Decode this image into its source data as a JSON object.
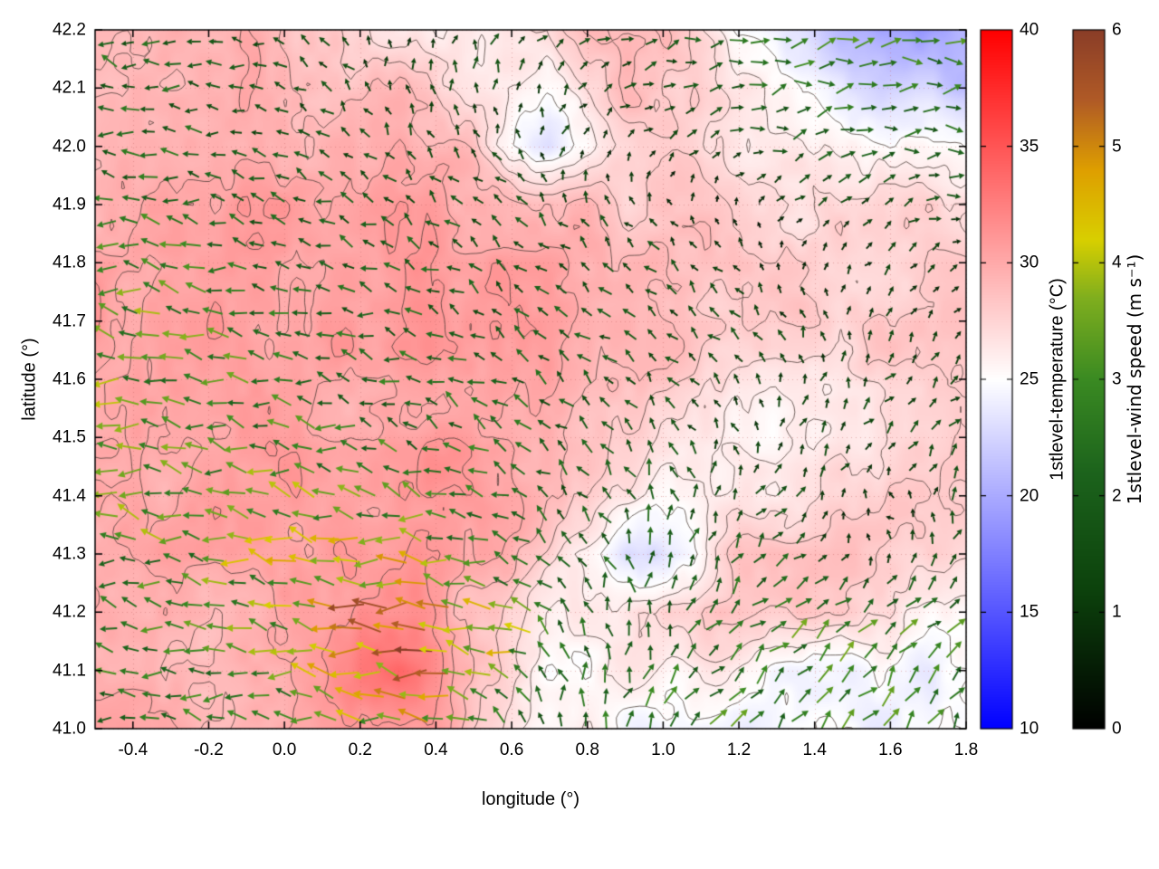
{
  "chart_data": {
    "type": "heatmap",
    "subtype": "temperature-field-with-wind-vector-quiver-and-contours",
    "title": "",
    "xlabel": "longitude (°)",
    "ylabel": "latitude (°)",
    "xlim": [
      -0.5,
      1.8
    ],
    "ylim": [
      41.0,
      42.2
    ],
    "grid": true,
    "x_ticks": {
      "values": [
        -0.4,
        -0.2,
        0.0,
        0.2,
        0.4,
        0.6,
        0.8,
        1.0,
        1.2,
        1.4,
        1.6,
        1.8
      ],
      "labels": [
        "-0.4",
        "-0.2",
        "0.0",
        "0.2",
        "0.4",
        "0.6",
        "0.8",
        "1.0",
        "1.2",
        "1.4",
        "1.6",
        "1.8"
      ]
    },
    "y_ticks": {
      "values": [
        41.0,
        41.1,
        41.2,
        41.3,
        41.4,
        41.5,
        41.6,
        41.7,
        41.8,
        41.9,
        42.0,
        42.1,
        42.2
      ],
      "labels": [
        "41.0",
        "41.1",
        "41.2",
        "41.3",
        "41.4",
        "41.5",
        "41.6",
        "41.7",
        "41.8",
        "41.9",
        "42.0",
        "42.1",
        "42.2"
      ]
    },
    "colorbars": [
      {
        "label": "1stlevel-temperature (°C)",
        "range": [
          10,
          40
        ],
        "tick_values": [
          10,
          15,
          20,
          25,
          30,
          35,
          40
        ],
        "tick_labels": [
          "10",
          "15",
          "20",
          "25",
          "30",
          "35",
          "40"
        ],
        "stops": [
          [
            10,
            "#0000ff"
          ],
          [
            25,
            "#ffffff"
          ],
          [
            40,
            "#ff0000"
          ]
        ]
      },
      {
        "label": "1stlevel-wind speed (m s⁻¹)",
        "range": [
          0,
          6
        ],
        "tick_values": [
          0,
          1,
          2,
          3,
          4,
          5,
          6
        ],
        "tick_labels": [
          "0",
          "1",
          "2",
          "3",
          "4",
          "5",
          "6"
        ],
        "stops": [
          [
            0,
            "#000000"
          ],
          [
            1.2,
            "#0c420c"
          ],
          [
            2.2,
            "#1c631c"
          ],
          [
            3.0,
            "#3a8a22"
          ],
          [
            3.7,
            "#7fae1e"
          ],
          [
            4.2,
            "#d8cf00"
          ],
          [
            4.8,
            "#de9f00"
          ],
          [
            5.4,
            "#b05a26"
          ],
          [
            6,
            "#8a3d27"
          ]
        ]
      }
    ],
    "contour_levels_c": [
      25,
      26,
      27,
      28,
      29,
      30,
      31
    ],
    "temperature_field": {
      "units": "°C",
      "x_start": -0.5,
      "x_step": 0.1,
      "y_start": 41.0,
      "y_step": 0.1,
      "values_south_to_north": [
        [
          30,
          30,
          30,
          29.5,
          29.5,
          30,
          30.5,
          31.5,
          31.5,
          31,
          28,
          26,
          25.5,
          25.5,
          25,
          24.5,
          24.5,
          24.5,
          24.5,
          24.5,
          24.5,
          24.5,
          24.5,
          24.5
        ],
        [
          30,
          30,
          29.5,
          29.5,
          30,
          30,
          30.5,
          32,
          33,
          31.5,
          29,
          27,
          25.5,
          25.5,
          26,
          26.5,
          26,
          25.5,
          25,
          24.5,
          24.5,
          24.5,
          24.5,
          24.5
        ],
        [
          29.5,
          30,
          29.5,
          29.5,
          30,
          30.5,
          30.5,
          31.5,
          31.5,
          30.5,
          29,
          27,
          26,
          26,
          27,
          28,
          28.5,
          28.5,
          28,
          28,
          27.5,
          27,
          26,
          25
        ],
        [
          29.5,
          30,
          30,
          30,
          30,
          30.5,
          30.5,
          31,
          31,
          31,
          30.5,
          29,
          27,
          25,
          23.5,
          23.5,
          25,
          28.5,
          29,
          29,
          28.5,
          28,
          28,
          27.5
        ],
        [
          30,
          30,
          30,
          30.5,
          30.5,
          30.5,
          30,
          30,
          30.5,
          30.5,
          30.5,
          30,
          29,
          27.5,
          26.5,
          26,
          26,
          26.5,
          26,
          26.5,
          27.5,
          28.5,
          28.5,
          28
        ],
        [
          30,
          30.5,
          30.5,
          30.5,
          30.5,
          30.5,
          30,
          30,
          30.5,
          31,
          30.5,
          30,
          29.5,
          28.5,
          28,
          27.5,
          27,
          26,
          25.5,
          26,
          26.5,
          27.5,
          28,
          28
        ],
        [
          30,
          30.5,
          31,
          30.5,
          30.5,
          30.5,
          30,
          30,
          30.5,
          30.5,
          30.5,
          30.5,
          30,
          29.5,
          29,
          28.5,
          28,
          27,
          26.5,
          26.5,
          27,
          27.5,
          28,
          28
        ],
        [
          30.5,
          30.5,
          31,
          31,
          30.5,
          30.5,
          30.5,
          30.5,
          31,
          31,
          31,
          30.5,
          30.5,
          30,
          29.5,
          29,
          28.5,
          28,
          28,
          28,
          28,
          28,
          28.5,
          28
        ],
        [
          30,
          30.5,
          30.5,
          30.5,
          30.5,
          30.5,
          30.5,
          30.5,
          31,
          31,
          31,
          30.5,
          30.5,
          30,
          29.5,
          29.5,
          29,
          28.5,
          28,
          27.5,
          27.5,
          27.5,
          28,
          27.5
        ],
        [
          29.5,
          30,
          30,
          30,
          30.5,
          30.5,
          30,
          30,
          30.5,
          30.5,
          30,
          30,
          29.5,
          28.5,
          28,
          28.5,
          28.5,
          28,
          27.5,
          27,
          27,
          27.5,
          27.5,
          27
        ],
        [
          29.5,
          29.5,
          30,
          30,
          30,
          30,
          29.5,
          29.5,
          30,
          29.5,
          28.5,
          24.5,
          23.5,
          25,
          27,
          27.5,
          27.5,
          27,
          26.5,
          26,
          25.5,
          25.5,
          26,
          25.5
        ],
        [
          29.5,
          29.5,
          29.5,
          30,
          30,
          29.5,
          29,
          28.5,
          28.5,
          27.5,
          26.5,
          25.5,
          25,
          27,
          28.5,
          28.5,
          28,
          26.5,
          25.5,
          24.5,
          23.5,
          22.5,
          22,
          21.5
        ],
        [
          29.5,
          29.5,
          29.5,
          29.5,
          29.5,
          29,
          28.5,
          27.5,
          27,
          26.5,
          26.5,
          27,
          28,
          29,
          29,
          28.5,
          27,
          25,
          24,
          22.5,
          21,
          20,
          19.5,
          20
        ]
      ]
    },
    "wind_field": {
      "units": "m s⁻¹",
      "x_start": -0.5,
      "x_step": 0.20909,
      "y_start": 41.0,
      "y_step": 0.17143,
      "u_south_to_north": [
        [
          -2.5,
          -2.5,
          -2.5,
          -3,
          -3.5,
          -2,
          0.5,
          1.5,
          2,
          2,
          1.5,
          1.5
        ],
        [
          -2.5,
          -2.5,
          -3,
          -4.5,
          -5,
          -4,
          -1,
          0.5,
          1.5,
          2,
          2,
          1.5
        ],
        [
          -3,
          -3,
          -3.5,
          -3.5,
          -3,
          -2,
          -1,
          -0.5,
          1,
          1,
          -1,
          0.5
        ],
        [
          -3,
          -3,
          -2.5,
          -2.5,
          -2,
          -2,
          -1.5,
          -1,
          -0.5,
          0.5,
          1,
          1
        ],
        [
          -3,
          -3,
          -2.5,
          -2,
          -2,
          -1.5,
          -1.5,
          -1,
          -1,
          -0.5,
          0.5,
          0.5
        ],
        [
          -2.5,
          -2.5,
          -2,
          -2,
          -1.5,
          -1.5,
          -1,
          -1,
          -0.5,
          0.5,
          1,
          1
        ],
        [
          -2,
          -2,
          -1.5,
          -1,
          -0.5,
          -0.5,
          0.5,
          1,
          1.5,
          2,
          2,
          2
        ],
        [
          -2,
          -2,
          -1.5,
          -1,
          0.5,
          0.5,
          1,
          1.5,
          2,
          2.5,
          2.5,
          2.5
        ]
      ],
      "v_south_to_north": [
        [
          0,
          0.5,
          0,
          0.5,
          0.5,
          1,
          2,
          2,
          2,
          2,
          2,
          2
        ],
        [
          0.5,
          0,
          0.5,
          0.5,
          0.5,
          1,
          2,
          2,
          1.5,
          2,
          2,
          2
        ],
        [
          0.5,
          0.5,
          0.5,
          1,
          0.5,
          1,
          1.5,
          2,
          1.5,
          1,
          0.5,
          1.5
        ],
        [
          0.5,
          0.5,
          0.5,
          0.5,
          1,
          1,
          1,
          1.5,
          1,
          1,
          1,
          1
        ],
        [
          0.5,
          0.5,
          0.5,
          0.5,
          0.5,
          1,
          1,
          1,
          1,
          1,
          1,
          0.5
        ],
        [
          0,
          0.5,
          0.5,
          0.5,
          1,
          1,
          1,
          1,
          0.5,
          0.5,
          0.5,
          0.5
        ],
        [
          0.5,
          0,
          0.5,
          1,
          1,
          1,
          1,
          0.5,
          0.5,
          0.5,
          0.5,
          0
        ],
        [
          0.5,
          0,
          0.5,
          1,
          1,
          1.5,
          0.5,
          0.5,
          0,
          0.5,
          0.5,
          0
        ]
      ]
    }
  }
}
